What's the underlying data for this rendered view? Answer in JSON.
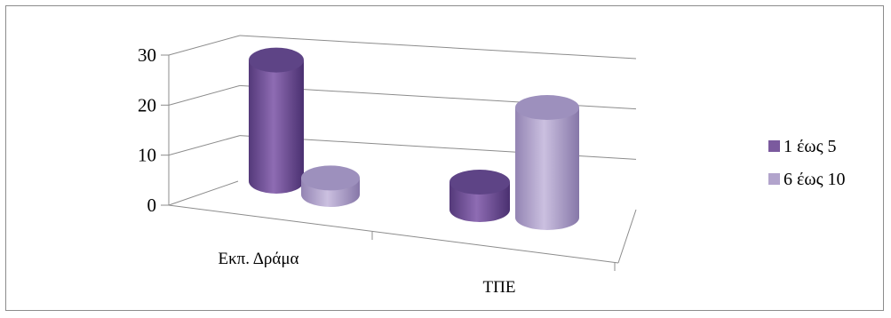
{
  "chart_data": {
    "type": "bar",
    "subtype": "3d-cylinder-clustered",
    "title": "",
    "xlabel": "",
    "ylabel": "",
    "categories": [
      "Εκπ. Δράμα",
      "ΤΠΕ"
    ],
    "series": [
      {
        "name": "1 έως 5",
        "color": "#7b5a9e",
        "values": [
          22,
          5
        ]
      },
      {
        "name": "6 έως 10",
        "color": "#b2a4cc",
        "values": [
          3,
          20
        ]
      }
    ],
    "ylim": [
      0,
      30
    ],
    "yticks": [
      0,
      10,
      20,
      30
    ],
    "grid": true,
    "legend": "right"
  }
}
